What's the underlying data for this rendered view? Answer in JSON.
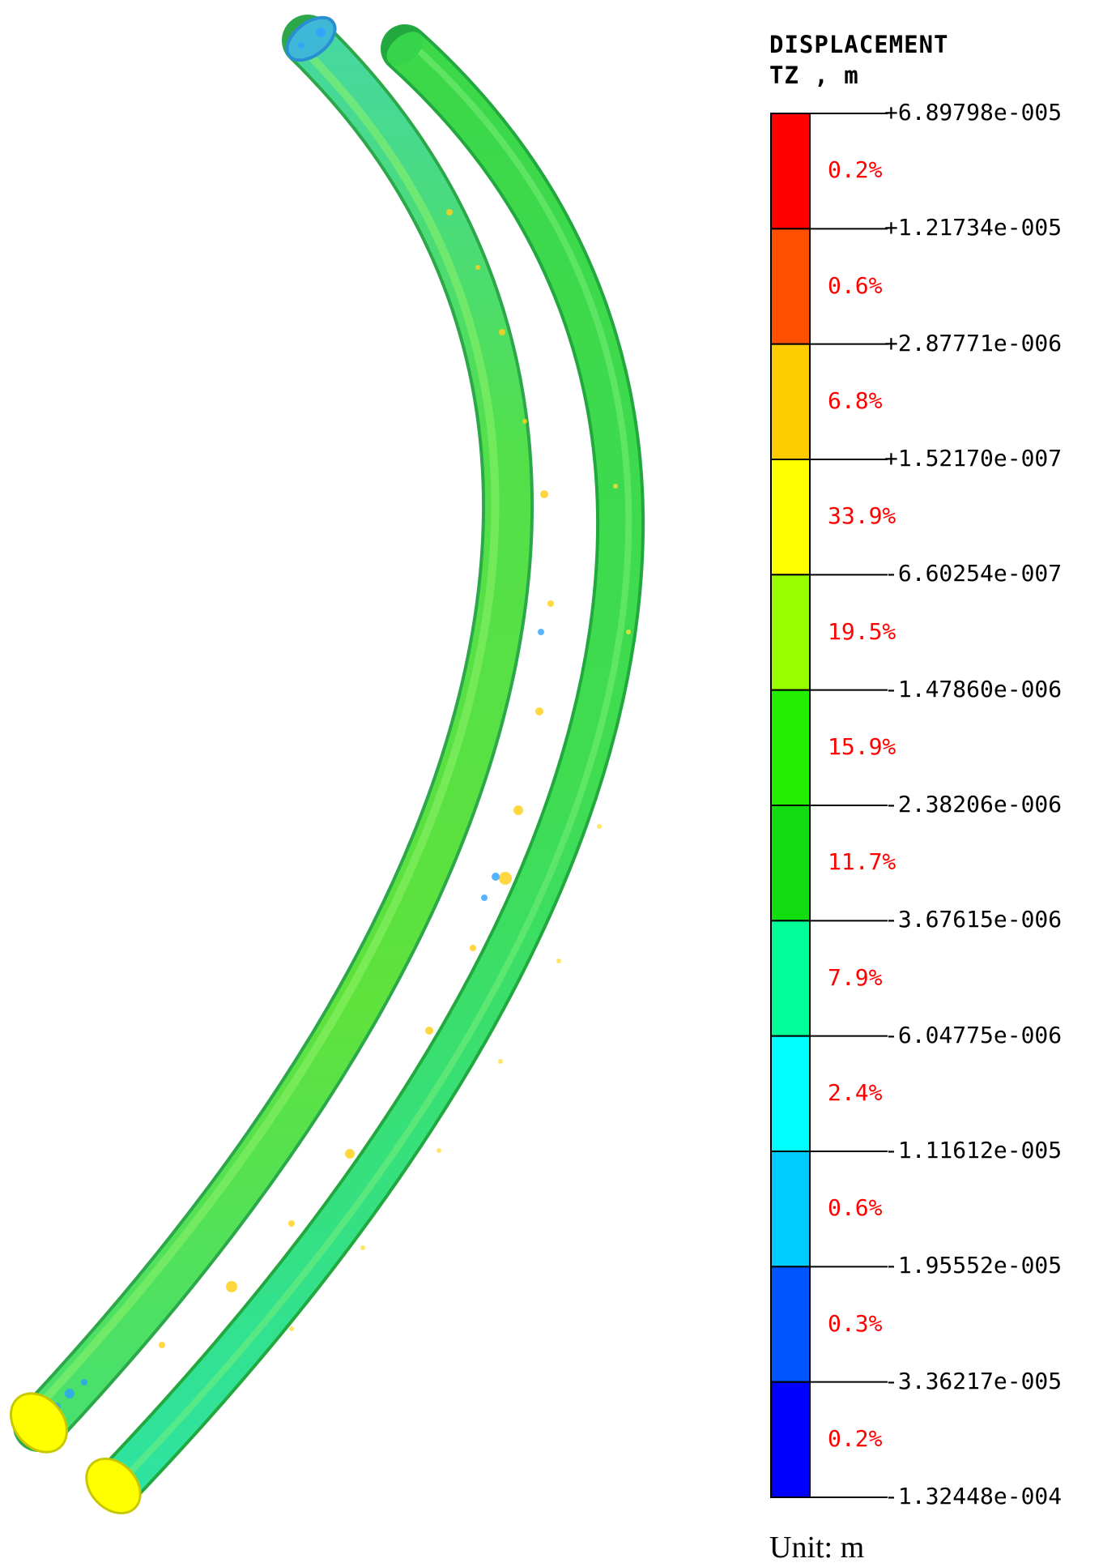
{
  "legend": {
    "title_line1": "DISPLACEMENT",
    "title_line2": "TZ , m",
    "ticks": [
      "+6.89798e-005",
      "+1.21734e-005",
      "+2.87771e-006",
      "+1.52170e-007",
      "-6.60254e-007",
      "-1.47860e-006",
      "-2.38206e-006",
      "-3.67615e-006",
      "-6.04775e-006",
      "-1.11612e-005",
      "-1.95552e-005",
      "-3.36217e-005",
      "-1.32448e-004"
    ],
    "bands": [
      {
        "color": "#ff0000",
        "pct": "0.2%"
      },
      {
        "color": "#ff5000",
        "pct": "0.6%"
      },
      {
        "color": "#ffcc00",
        "pct": "6.8%"
      },
      {
        "color": "#ffff00",
        "pct": "33.9%"
      },
      {
        "color": "#99ff00",
        "pct": "19.5%"
      },
      {
        "color": "#22ee00",
        "pct": "15.9%"
      },
      {
        "color": "#11dd11",
        "pct": "11.7%"
      },
      {
        "color": "#00ff99",
        "pct": "7.9%"
      },
      {
        "color": "#00ffff",
        "pct": "2.4%"
      },
      {
        "color": "#00ccff",
        "pct": "0.6%"
      },
      {
        "color": "#0055ff",
        "pct": "0.3%"
      },
      {
        "color": "#0000ff",
        "pct": "0.2%"
      }
    ]
  },
  "unit": "Unit: m",
  "model": {
    "inner_tube_color": "#4fe35c",
    "outer_tube_color": "#39e04a",
    "end_cap_color": "#ffff00"
  }
}
